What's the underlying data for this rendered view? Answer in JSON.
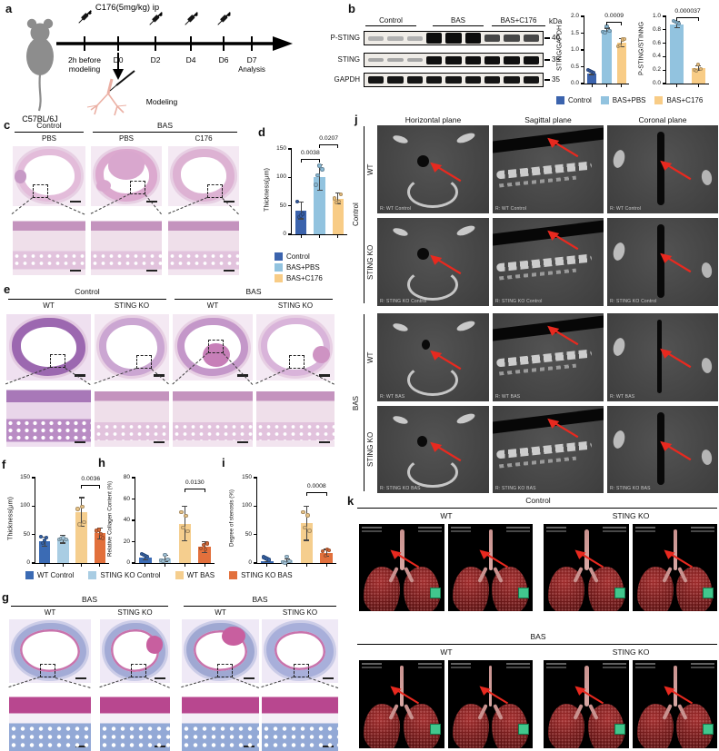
{
  "panels": {
    "a": {
      "label": "a",
      "strain": "C57BL/6J",
      "injection": "C176(5mg/kg) ip",
      "pre1": "2h before",
      "pre2": "modeling",
      "days": [
        "D0",
        "D2",
        "D4",
        "D6",
        "D7"
      ],
      "analysis": "Analysis",
      "modeling": "Modeling"
    },
    "b": {
      "label": "b",
      "lane_groups": [
        "Control",
        "BAS",
        "BAS+C176"
      ],
      "rows": [
        "P-STING",
        "STING",
        "GAPDH"
      ],
      "kda_unit": "kDa",
      "kda_values": [
        "40",
        "35",
        "35"
      ]
    },
    "c": {
      "label": "c",
      "group_headers": [
        "Control",
        "BAS"
      ],
      "col_labels": [
        "PBS",
        "PBS",
        "C176"
      ]
    },
    "d": {
      "label": "d"
    },
    "e": {
      "label": "e",
      "group_headers": [
        "Control",
        "BAS"
      ],
      "col_labels": [
        "WT",
        "STING KO",
        "WT",
        "STING KO"
      ]
    },
    "f": {
      "label": "f"
    },
    "g": {
      "label": "g",
      "group_headers": [
        "BAS",
        "BAS"
      ],
      "col_labels": [
        "WT",
        "STING KO",
        "WT",
        "STING KO"
      ]
    },
    "h": {
      "label": "h"
    },
    "i": {
      "label": "i"
    },
    "j": {
      "label": "j",
      "col_headers": [
        "Horizontal plane",
        "Sagittal plane",
        "Coronal plane"
      ],
      "row_groups": [
        "Control",
        "BAS"
      ],
      "row_labels": [
        "WT",
        "STING KO",
        "WT",
        "STING KO"
      ],
      "corner_labels": [
        "R: WT Control",
        "R: STING KO Control",
        "R: WT BAS",
        "R: STING KO BAS"
      ]
    },
    "k": {
      "label": "k",
      "group_titles": [
        "Control",
        "BAS"
      ],
      "col_labels": [
        "WT",
        "STING KO"
      ]
    }
  },
  "legends": {
    "cbd": [
      "Control",
      "BAS+PBS",
      "BAS+C176"
    ],
    "fhi": [
      "WT Control",
      "STING KO Control",
      "WT BAS",
      "STING KO BAS"
    ]
  },
  "colors": {
    "control_blue": "#3B63AD",
    "bas_pbs_blue": "#92C3DF",
    "bas_c176_tan": "#F8CC86",
    "wt_control_blue": "#3B6BB4",
    "stingko_control_blue": "#A9CDE3",
    "wt_bas_tan": "#F5CE8E",
    "stingko_bas_orange": "#E2703C",
    "arrow_red": "#E8291F"
  },
  "chart_data": [
    {
      "id": "b_sting_gapdh",
      "type": "bar",
      "title": "",
      "ylabel": "STING/GAPDH",
      "xlabel": "",
      "categories": [
        "Control",
        "BAS+PBS",
        "BAS+C176"
      ],
      "values": [
        0.3,
        1.6,
        1.22
      ],
      "errors": [
        0.03,
        0.05,
        0.12
      ],
      "colors": [
        "#3B63AD",
        "#92C3DF",
        "#F8CC86"
      ],
      "ylim": [
        0,
        2.0
      ],
      "yticks": [
        "0.0",
        "0.5",
        "1.0",
        "1.5",
        "2.0"
      ],
      "pvalues": [
        {
          "between": [
            1,
            2
          ],
          "y": 1.85,
          "label": "0.0009"
        }
      ]
    },
    {
      "id": "b_psting_sting",
      "type": "bar",
      "title": "",
      "ylabel": "P-STING/STINNG",
      "xlabel": "",
      "categories": [
        "BAS+PBS",
        "BAS+C176"
      ],
      "values": [
        0.88,
        0.23
      ],
      "errors": [
        0.05,
        0.03
      ],
      "colors": [
        "#92C3DF",
        "#F8CC86"
      ],
      "ylim": [
        0,
        1.0
      ],
      "yticks": [
        "0.0",
        "0.2",
        "0.4",
        "0.6",
        "0.8",
        "1.0"
      ],
      "pvalues": [
        {
          "between": [
            0,
            1
          ],
          "y": 0.99,
          "label": "0.000037"
        }
      ]
    },
    {
      "id": "d_thickness",
      "type": "bar",
      "title": "",
      "ylabel": "Thickness(μm)",
      "xlabel": "",
      "categories": [
        "Control",
        "BAS+PBS",
        "BAS+C176"
      ],
      "values": [
        42,
        100,
        63
      ],
      "errors": [
        15,
        22,
        10
      ],
      "colors": [
        "#3B63AD",
        "#92C3DF",
        "#F8CC86"
      ],
      "ylim": [
        0,
        150
      ],
      "yticks": [
        "0",
        "50",
        "100",
        "150"
      ],
      "pvalues": [
        {
          "between": [
            0,
            1
          ],
          "y": 132,
          "label": "0.0038"
        },
        {
          "between": [
            1,
            2
          ],
          "y": 158,
          "label": "0.0207"
        }
      ]
    },
    {
      "id": "f_thickness",
      "type": "bar",
      "title": "",
      "ylabel": "Thickness(μm)",
      "xlabel": "",
      "categories": [
        "WT Control",
        "STING KO Control",
        "WT BAS",
        "STING KO BAS"
      ],
      "values": [
        38,
        42,
        90,
        52
      ],
      "errors": [
        8,
        7,
        25,
        10
      ],
      "colors": [
        "#3B6BB4",
        "#A9CDE3",
        "#F5CE8E",
        "#E2703C"
      ],
      "ylim": [
        0,
        150
      ],
      "yticks": [
        "0",
        "50",
        "100",
        "150"
      ],
      "pvalues": [
        {
          "between": [
            2,
            3
          ],
          "y": 138,
          "label": "0.0036"
        }
      ]
    },
    {
      "id": "h_collagen",
      "type": "bar",
      "title": "",
      "ylabel": "Relative Collagen Content (%)",
      "xlabel": "",
      "categories": [
        "WT Control",
        "STING KO Control",
        "WT BAS",
        "STING KO BAS"
      ],
      "values": [
        5,
        4,
        37,
        15
      ],
      "errors": [
        2,
        3,
        16,
        5
      ],
      "colors": [
        "#3B6BB4",
        "#A9CDE3",
        "#F5CE8E",
        "#E2703C"
      ],
      "ylim": [
        0,
        80
      ],
      "yticks": [
        "0",
        "20",
        "40",
        "60",
        "80"
      ],
      "pvalues": [
        {
          "between": [
            2,
            3
          ],
          "y": 70,
          "label": "0.0130"
        }
      ]
    },
    {
      "id": "i_stenosis",
      "type": "bar",
      "title": "",
      "ylabel": "Degree of stenosis (%)",
      "xlabel": "",
      "categories": [
        "WT Control",
        "STING KO Control",
        "WT BAS",
        "STING KO BAS"
      ],
      "values": [
        4,
        5,
        70,
        18
      ],
      "errors": [
        2,
        2,
        30,
        6
      ],
      "colors": [
        "#3B6BB4",
        "#A9CDE3",
        "#F5CE8E",
        "#E2703C"
      ],
      "ylim": [
        0,
        150
      ],
      "yticks": [
        "0",
        "50",
        "100",
        "150"
      ],
      "pvalues": [
        {
          "between": [
            2,
            3
          ],
          "y": 125,
          "label": "0.0008"
        }
      ]
    }
  ]
}
